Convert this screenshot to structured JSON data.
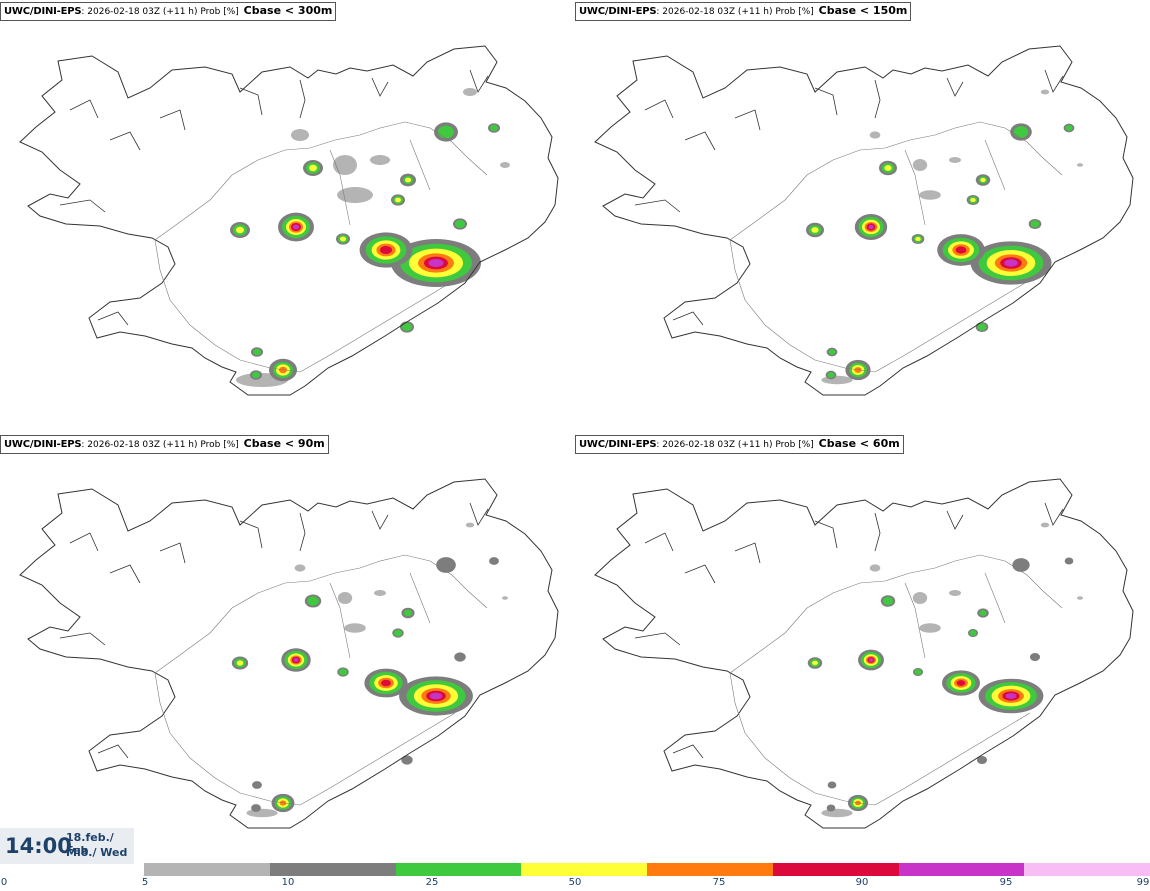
{
  "panels": [
    {
      "model": "UWC/DINI-EPS",
      "info": ": 2026-02-18 03Z (+11 h) Prob [%]",
      "threshold": "Cbase < 300m",
      "level": 0
    },
    {
      "model": "UWC/DINI-EPS",
      "info": ": 2026-02-18 03Z (+11 h) Prob [%]",
      "threshold": "Cbase < 150m",
      "level": 1
    },
    {
      "model": "UWC/DINI-EPS",
      "info": ": 2026-02-18 03Z (+11 h) Prob [%]",
      "threshold": "Cbase < 90m",
      "level": 2
    },
    {
      "model": "UWC/DINI-EPS",
      "info": ": 2026-02-18 03Z (+11 h) Prob [%]",
      "threshold": "Cbase < 60m",
      "level": 3
    }
  ],
  "valid_time": {
    "time": "14:00",
    "date_line1": "18.feb./ Feb",
    "date_line2": "Mið./ Wed"
  },
  "legend": {
    "ticks": [
      "0",
      "5",
      "10",
      "25",
      "50",
      "75",
      "90",
      "95",
      "99"
    ],
    "colors": [
      "#b4b4b4",
      "#7d7d7d",
      "#3ec93e",
      "#ffff38",
      "#ff7b10",
      "#dc0a3c",
      "#c833c8",
      "#f7bdf4"
    ]
  }
}
